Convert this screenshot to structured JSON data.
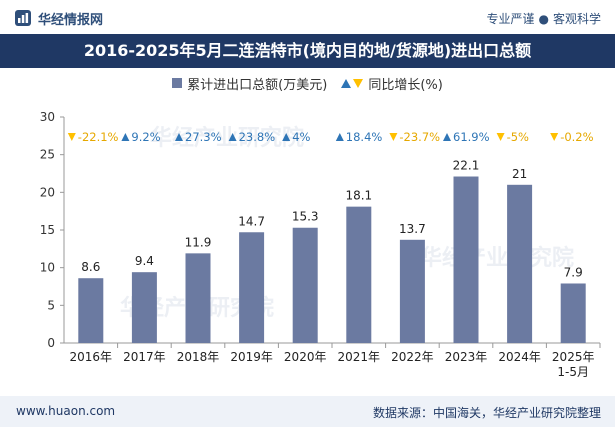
{
  "header": {
    "brand": "华经情报网",
    "tagline_left": "专业严谨",
    "tagline_sep": "●",
    "tagline_right": "客观科学"
  },
  "footer": {
    "website": "www.huaon.com",
    "source": "数据来源：中国海关，华经产业研究院整理"
  },
  "colors": {
    "bar": "#6b7aa1",
    "up": "#2e75b6",
    "down": "#ffc000",
    "title_bg": "#1f3864"
  },
  "chart_data": {
    "type": "bar",
    "title": "2016-2025年5月二连浩特市(境内目的地/货源地)进出口总额",
    "legend": [
      "累计进出口总额(万美元)",
      "同比增长(%)"
    ],
    "categories": [
      "2016年",
      "2017年",
      "2018年",
      "2019年",
      "2020年",
      "2021年",
      "2022年",
      "2023年",
      "2024年",
      "2025年1-5月"
    ],
    "category_lines": [
      [
        "2016年"
      ],
      [
        "2017年"
      ],
      [
        "2018年"
      ],
      [
        "2019年"
      ],
      [
        "2020年"
      ],
      [
        "2021年"
      ],
      [
        "2022年"
      ],
      [
        "2023年"
      ],
      [
        "2024年"
      ],
      [
        "2025年",
        "1-5月"
      ]
    ],
    "series": [
      {
        "name": "累计进出口总额(万美元)",
        "values": [
          8.6,
          9.4,
          11.9,
          14.7,
          15.3,
          18.1,
          13.7,
          22.1,
          21,
          7.9
        ]
      }
    ],
    "value_labels": [
      "8.6",
      "9.4",
      "11.9",
      "14.7",
      "15.3",
      "18.1",
      "13.7",
      "22.1",
      "21",
      "7.9"
    ],
    "growth": {
      "name": "同比增长(%)",
      "values": [
        -22.1,
        9.2,
        27.3,
        23.8,
        4,
        18.4,
        -23.7,
        61.9,
        -5,
        -0.2
      ],
      "labels": [
        "-22.1%",
        "9.2%",
        "27.3%",
        "23.8%",
        "4%",
        "18.4%",
        "-23.7%",
        "61.9%",
        "-5%",
        "-0.2%"
      ]
    },
    "y_ticks": [
      0,
      5,
      10,
      15,
      20,
      25,
      30
    ],
    "ylim": [
      0,
      30
    ],
    "grid": false
  },
  "watermark": "华经产业研究院"
}
